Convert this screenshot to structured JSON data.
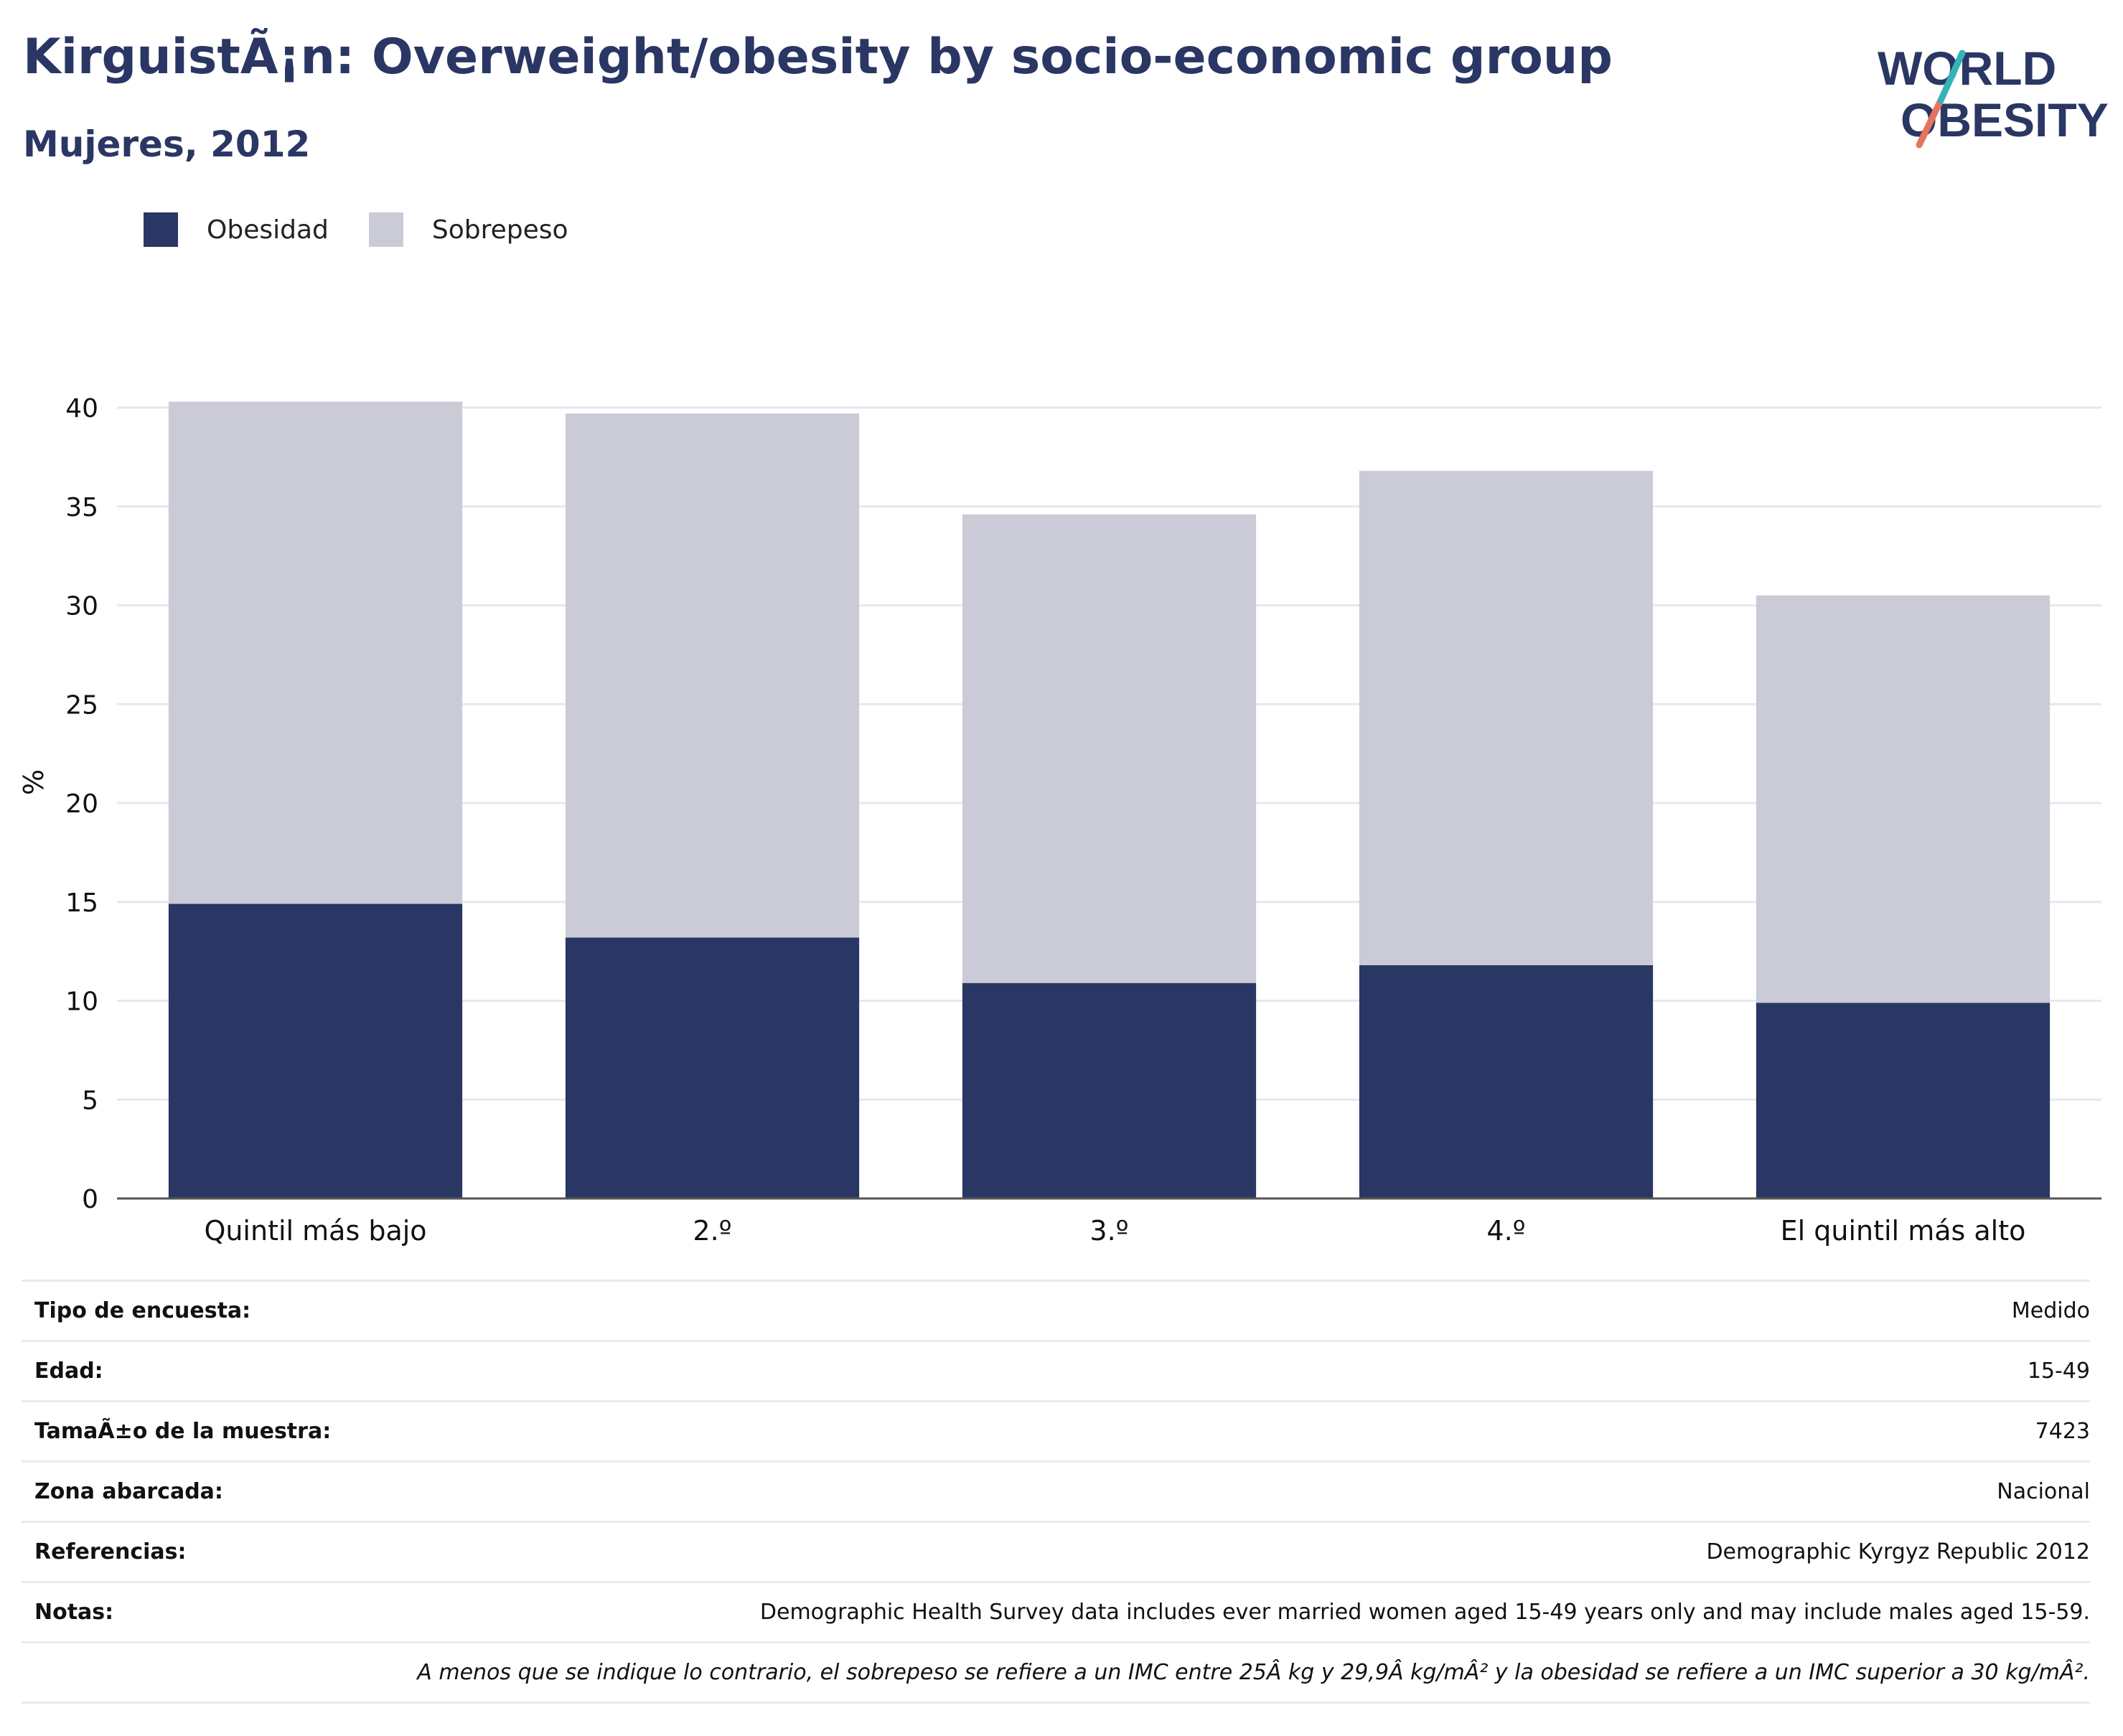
{
  "header": {
    "title": "KirguistÃ¡n: Overweight/obesity by socio-economic group",
    "subtitle": "Mujeres, 2012"
  },
  "logo": {
    "line1": "WORLD",
    "line2": "OBESITY",
    "icon": "world-obesity-logo-icon"
  },
  "colors": {
    "obesidad": "#2a3663",
    "sobrepeso": "#cacbd7",
    "title": "#2a3663",
    "grid": "#e6e8ef",
    "axis": "#555555"
  },
  "chart_data": {
    "type": "bar",
    "stacked": true,
    "categories": [
      "Quintil más bajo",
      "2.º",
      "3.º",
      "4.º",
      "El quintil más alto"
    ],
    "series": [
      {
        "name": "Obesidad",
        "values": [
          14.9,
          13.2,
          10.9,
          11.8,
          9.9
        ]
      },
      {
        "name": "Sobrepeso",
        "values": [
          25.4,
          26.5,
          23.7,
          25.0,
          20.6
        ]
      }
    ],
    "title": "",
    "xlabel": "",
    "ylabel": "%",
    "ylim": [
      0,
      40
    ],
    "yticks": [
      0,
      5,
      10,
      15,
      20,
      25,
      30,
      35,
      40
    ],
    "grid": true,
    "legend": "top-left"
  },
  "info": {
    "rows": [
      {
        "label": "Tipo de encuesta:",
        "value": "Medido"
      },
      {
        "label": "Edad:",
        "value": "15-49"
      },
      {
        "label": "TamaÃ±o de la muestra:",
        "value": "7423"
      },
      {
        "label": "Zona abarcada:",
        "value": "Nacional"
      },
      {
        "label": "Referencias:",
        "value": "Demographic Kyrgyz Republic 2012"
      },
      {
        "label": "Notas:",
        "value": "Demographic Health Survey data includes ever married women aged 15-49 years only and may include males aged 15-59."
      }
    ],
    "footnote": "A menos que se indique lo contrario, el sobrepeso se refiere a un IMC entre 25Â kg y 29,9Â kg/mÂ² y la obesidad se refiere a un IMC superior a 30 kg/mÂ²."
  }
}
